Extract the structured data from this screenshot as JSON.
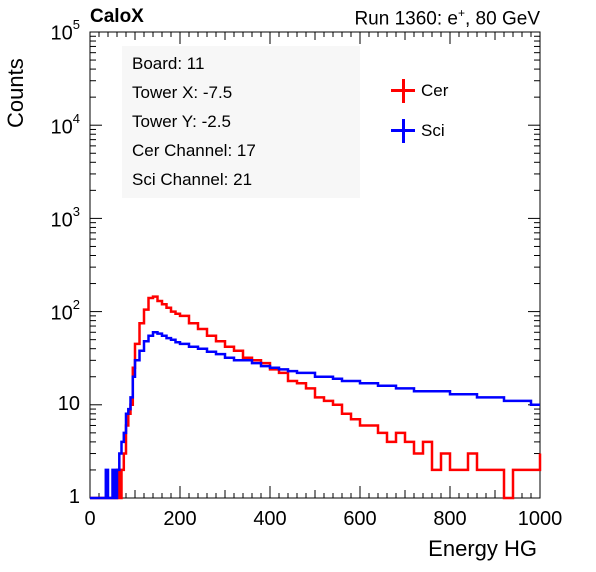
{
  "header": {
    "left": "CaloX",
    "right_prefix": "Run 1360: e",
    "right_sup": "+",
    "right_suffix": ", 80 GeV"
  },
  "info_box": {
    "lines": [
      "Board: 11",
      "Tower X: -7.5",
      "Tower Y: -2.5",
      "Cer Channel: 17",
      "Sci Channel: 21"
    ]
  },
  "legend": {
    "items": [
      {
        "label": "Cer",
        "color": "#ff0000"
      },
      {
        "label": "Sci",
        "color": "#0000ff"
      }
    ]
  },
  "chart_data": {
    "type": "line",
    "title": "",
    "xlabel": "Energy HG",
    "ylabel": "Counts",
    "xlim": [
      0,
      1000
    ],
    "ylim": [
      1,
      100000
    ],
    "yscale": "log",
    "grid": false,
    "legend_position": "top-right",
    "x_ticks": [
      "0",
      "200",
      "400",
      "600",
      "800",
      "1000"
    ],
    "y_ticks": [
      {
        "base": "1",
        "exp": ""
      },
      {
        "base": "10",
        "exp": ""
      },
      {
        "base": "10",
        "exp": "2"
      },
      {
        "base": "10",
        "exp": "3"
      },
      {
        "base": "10",
        "exp": "4"
      },
      {
        "base": "10",
        "exp": "5"
      }
    ],
    "series": [
      {
        "name": "Cer",
        "color": "#ff0000",
        "x": [
          0,
          20,
          30,
          35,
          40,
          45,
          50,
          55,
          60,
          65,
          70,
          75,
          80,
          85,
          90,
          95,
          100,
          110,
          120,
          130,
          140,
          150,
          160,
          170,
          180,
          190,
          200,
          220,
          240,
          260,
          280,
          300,
          320,
          340,
          360,
          380,
          400,
          420,
          440,
          460,
          480,
          500,
          520,
          540,
          560,
          580,
          600,
          620,
          640,
          660,
          680,
          700,
          720,
          740,
          760,
          780,
          800,
          820,
          840,
          860,
          880,
          900,
          920,
          940,
          960,
          980,
          1000
        ],
        "y": [
          1,
          1,
          1,
          1,
          1,
          1,
          1,
          1,
          2,
          1,
          2,
          3,
          6,
          8,
          10,
          25,
          45,
          75,
          105,
          140,
          145,
          130,
          120,
          110,
          100,
          95,
          90,
          75,
          65,
          55,
          48,
          42,
          38,
          32,
          30,
          28,
          24,
          22,
          18,
          17,
          15,
          12,
          11,
          10,
          8,
          7,
          6,
          6,
          5,
          4,
          5,
          4,
          3,
          4,
          2,
          3,
          2,
          2,
          3,
          2,
          2,
          2,
          1,
          2,
          2,
          2,
          3
        ]
      },
      {
        "name": "Sci",
        "color": "#0000ff",
        "x": [
          0,
          20,
          30,
          35,
          40,
          45,
          50,
          55,
          60,
          65,
          70,
          75,
          80,
          85,
          90,
          95,
          100,
          110,
          120,
          130,
          140,
          150,
          160,
          170,
          180,
          190,
          200,
          220,
          240,
          260,
          280,
          300,
          320,
          340,
          360,
          380,
          400,
          420,
          440,
          460,
          480,
          500,
          520,
          540,
          560,
          580,
          600,
          620,
          640,
          660,
          680,
          700,
          720,
          740,
          760,
          780,
          800,
          820,
          840,
          860,
          880,
          900,
          920,
          940,
          960,
          980,
          1000
        ],
        "y": [
          1,
          1,
          1,
          2,
          1,
          1,
          2,
          1,
          2,
          3,
          4,
          5,
          8,
          9,
          12,
          20,
          30,
          38,
          48,
          55,
          60,
          58,
          55,
          52,
          50,
          47,
          45,
          42,
          40,
          37,
          35,
          32,
          30,
          30,
          28,
          26,
          25,
          24,
          23,
          22,
          22,
          20,
          20,
          19,
          18,
          18,
          17,
          17,
          16,
          16,
          15,
          15,
          14,
          14,
          14,
          14,
          13,
          13,
          13,
          12,
          12,
          12,
          11,
          11,
          11,
          10,
          10
        ]
      }
    ]
  }
}
